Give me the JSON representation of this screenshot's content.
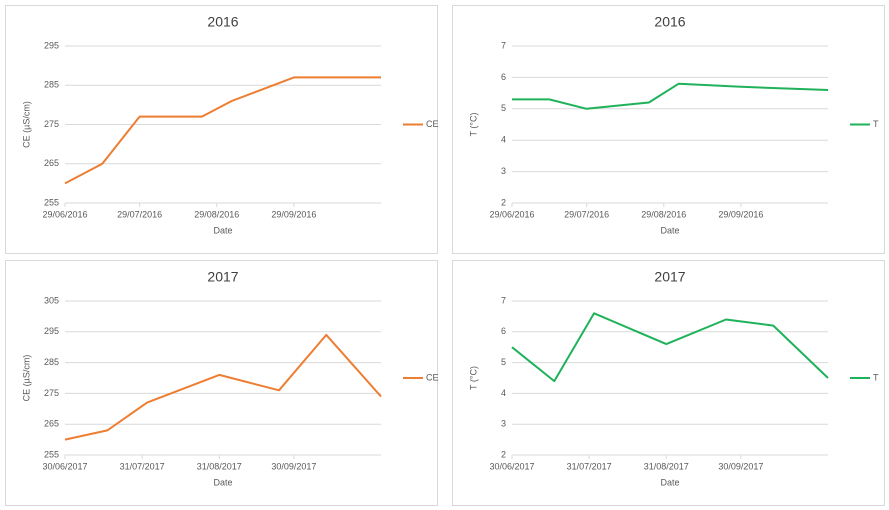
{
  "chart_data": [
    {
      "type": "line",
      "title": "2016",
      "x_label": "Date",
      "y_label": "CE (µS/cm)",
      "x": [
        "2016-06-29",
        "2016-07-14",
        "2016-07-29",
        "2016-08-23",
        "2016-09-04",
        "2016-09-29",
        "2016-11-03"
      ],
      "series": [
        {
          "name": "CE",
          "color": "#ed7d31",
          "values": [
            260,
            265,
            277,
            277,
            281,
            287,
            287
          ]
        }
      ],
      "xlim": [
        "2016-06-29",
        "2016-11-03"
      ],
      "xticks": [
        {
          "value": "2016-06-29",
          "label": "29/06/2016"
        },
        {
          "value": "2016-07-29",
          "label": "29/07/2016"
        },
        {
          "value": "2016-08-29",
          "label": "29/08/2016"
        },
        {
          "value": "2016-09-29",
          "label": "29/09/2016"
        }
      ],
      "ylim": [
        255,
        295
      ],
      "yticks": [
        255,
        265,
        275,
        285,
        295
      ],
      "grid": true,
      "legend": "right"
    },
    {
      "type": "line",
      "title": "2016",
      "x_label": "Date",
      "y_label": "T (°C)",
      "x": [
        "2016-06-29",
        "2016-07-14",
        "2016-07-29",
        "2016-08-23",
        "2016-09-04",
        "2016-09-29",
        "2016-11-03"
      ],
      "series": [
        {
          "name": "T",
          "color": "#1fb25a",
          "values": [
            5.3,
            5.3,
            5.0,
            5.2,
            5.8,
            5.7,
            5.6
          ]
        }
      ],
      "xlim": [
        "2016-06-29",
        "2016-11-03"
      ],
      "xticks": [
        {
          "value": "2016-06-29",
          "label": "29/06/2016"
        },
        {
          "value": "2016-07-29",
          "label": "29/07/2016"
        },
        {
          "value": "2016-08-29",
          "label": "29/08/2016"
        },
        {
          "value": "2016-09-29",
          "label": "29/09/2016"
        }
      ],
      "ylim": [
        2,
        7
      ],
      "yticks": [
        2,
        3,
        4,
        5,
        6,
        7
      ],
      "grid": true,
      "legend": "right"
    },
    {
      "type": "line",
      "title": "2017",
      "x_label": "Date",
      "y_label": "CE (µS/cm)",
      "x": [
        "2017-06-30",
        "2017-07-17",
        "2017-08-02",
        "2017-08-31",
        "2017-09-24",
        "2017-10-13",
        "2017-11-04"
      ],
      "series": [
        {
          "name": "CE",
          "color": "#ed7d31",
          "values": [
            260,
            263,
            272,
            281,
            276,
            294,
            274
          ]
        }
      ],
      "xlim": [
        "2017-06-30",
        "2017-11-04"
      ],
      "xticks": [
        {
          "value": "2017-06-30",
          "label": "30/06/2017"
        },
        {
          "value": "2017-07-31",
          "label": "31/07/2017"
        },
        {
          "value": "2017-08-31",
          "label": "31/08/2017"
        },
        {
          "value": "2017-09-30",
          "label": "30/09/2017"
        }
      ],
      "ylim": [
        255,
        305
      ],
      "yticks": [
        255,
        265,
        275,
        285,
        295,
        305
      ],
      "grid": true,
      "legend": "right"
    },
    {
      "type": "line",
      "title": "2017",
      "x_label": "Date",
      "y_label": "T (°C)",
      "x": [
        "2017-06-30",
        "2017-07-17",
        "2017-08-02",
        "2017-08-31",
        "2017-09-24",
        "2017-10-13",
        "2017-11-04"
      ],
      "series": [
        {
          "name": "T",
          "color": "#1fb25a",
          "values": [
            5.5,
            4.4,
            6.6,
            5.6,
            6.4,
            6.2,
            4.5
          ]
        }
      ],
      "xlim": [
        "2017-06-30",
        "2017-11-04"
      ],
      "xticks": [
        {
          "value": "2017-06-30",
          "label": "30/06/2017"
        },
        {
          "value": "2017-07-31",
          "label": "31/07/2017"
        },
        {
          "value": "2017-08-31",
          "label": "31/08/2017"
        },
        {
          "value": "2017-09-30",
          "label": "30/09/2017"
        }
      ],
      "ylim": [
        2,
        7
      ],
      "yticks": [
        2,
        3,
        4,
        5,
        6,
        7
      ],
      "grid": true,
      "legend": "right"
    }
  ]
}
